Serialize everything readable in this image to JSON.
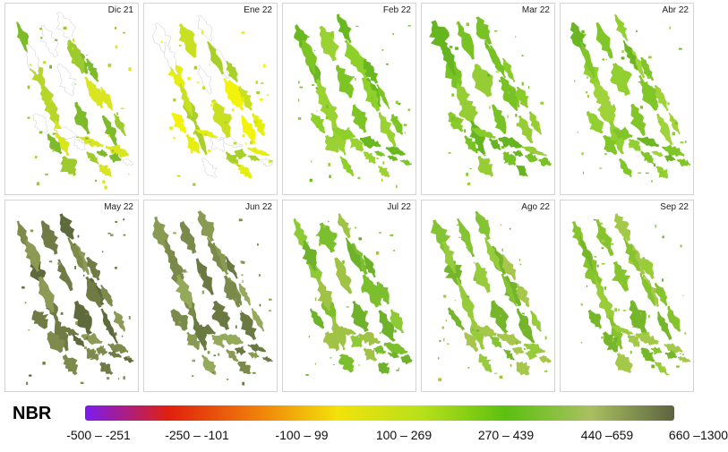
{
  "panels": [
    {
      "label": "Dic 21",
      "palette": [
        "#9dca2e",
        "#b7d62a",
        "#d9e51e",
        "#7dbb2a"
      ],
      "has_gaps": true
    },
    {
      "label": "Ene 22",
      "palette": [
        "#e6ee10",
        "#f2f20a",
        "#c8df22",
        "#a8cf2a"
      ],
      "has_gaps": true
    },
    {
      "label": "Feb 22",
      "palette": [
        "#7cc524",
        "#8ed02a",
        "#6ab81f",
        "#9bd233"
      ],
      "has_gaps": false
    },
    {
      "label": "Mar 22",
      "palette": [
        "#78c226",
        "#88cb2b",
        "#66b420",
        "#96cd35"
      ],
      "has_gaps": false
    },
    {
      "label": "Abr 22",
      "palette": [
        "#80c629",
        "#92cf30",
        "#6cb623",
        "#a0d23a"
      ],
      "has_gaps": false
    },
    {
      "label": "May 22",
      "palette": [
        "#6f7a45",
        "#7e8a4b",
        "#8c9a55",
        "#5e6a3c"
      ],
      "has_gaps": false
    },
    {
      "label": "Jun 22",
      "palette": [
        "#7a8a4a",
        "#899a52",
        "#95a95a",
        "#6a7842"
      ],
      "has_gaps": false
    },
    {
      "label": "Jul 22",
      "palette": [
        "#7cbf2e",
        "#8ec936",
        "#a0c245",
        "#6eb12a"
      ],
      "has_gaps": false
    },
    {
      "label": "Ago 22",
      "palette": [
        "#84c332",
        "#96cc3c",
        "#a6c64c",
        "#74b52c"
      ],
      "has_gaps": false
    },
    {
      "label": "Sep 22",
      "palette": [
        "#86c42e",
        "#98cd38",
        "#a4c848",
        "#76b62a"
      ],
      "has_gaps": false
    }
  ],
  "legend": {
    "title": "NBR",
    "gradient_colors": [
      "#7a1cf0",
      "#e0200e",
      "#f07a0a",
      "#f2e20a",
      "#b8e01a",
      "#5cc010",
      "#a8c060",
      "#5e6440"
    ],
    "labels": [
      "-500 – -251",
      "-250 – -101",
      "-100 – 99",
      "100 – 269",
      "270 – 439",
      "440 –659",
      "660 –1300"
    ]
  }
}
